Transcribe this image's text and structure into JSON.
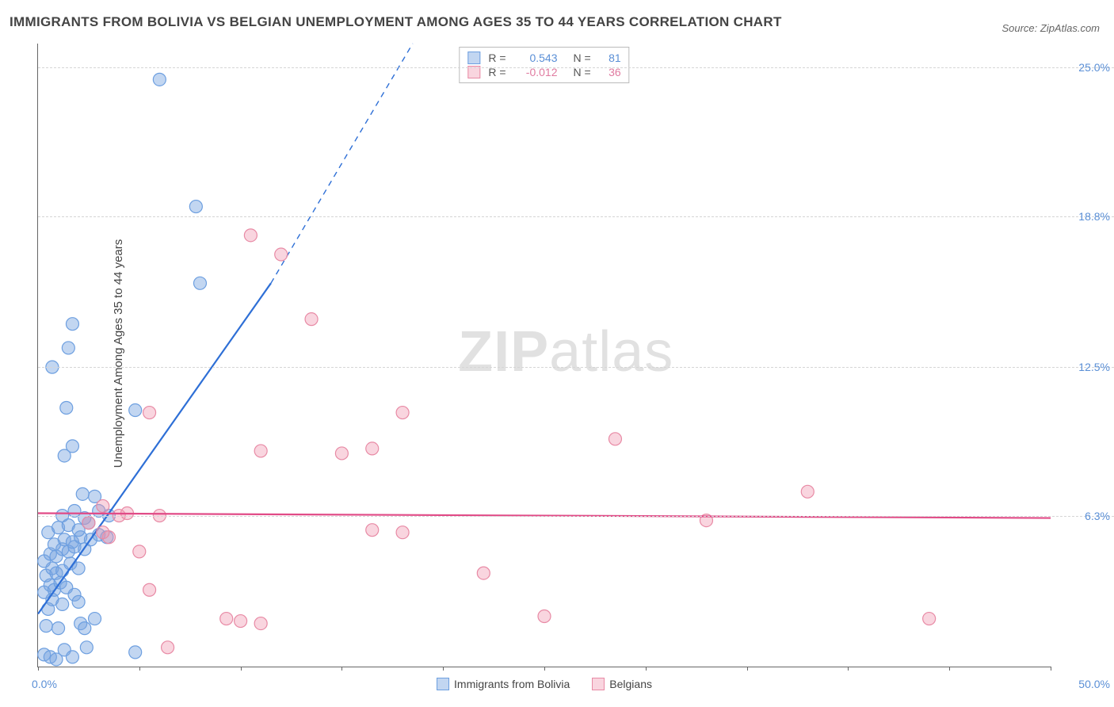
{
  "title": "IMMIGRANTS FROM BOLIVIA VS BELGIAN UNEMPLOYMENT AMONG AGES 35 TO 44 YEARS CORRELATION CHART",
  "source": "Source: ZipAtlas.com",
  "ylabel": "Unemployment Among Ages 35 to 44 years",
  "watermark_a": "ZIP",
  "watermark_b": "atlas",
  "chart": {
    "type": "scatter",
    "xlim": [
      0,
      50
    ],
    "ylim": [
      0,
      26
    ],
    "xlim_labels": {
      "min": "0.0%",
      "max": "50.0%"
    },
    "xtick_positions": [
      0,
      5,
      10,
      15,
      20,
      25,
      30,
      35,
      40,
      45,
      50
    ],
    "yticks": [
      {
        "v": 6.3,
        "label": "6.3%"
      },
      {
        "v": 12.5,
        "label": "12.5%"
      },
      {
        "v": 18.8,
        "label": "18.8%"
      },
      {
        "v": 25.0,
        "label": "25.0%"
      }
    ],
    "background_color": "#ffffff",
    "grid_color": "#d5d5d5",
    "axis_color": "#666666",
    "marker_radius": 8,
    "marker_stroke_width": 1.2,
    "line_width": 2.2,
    "series": [
      {
        "name": "Immigrants from Bolivia",
        "color_fill": "rgba(120,165,225,0.45)",
        "color_stroke": "#6d9fe0",
        "line_color": "#2e6fd6",
        "text_color": "#5a8fd6",
        "R": "0.543",
        "N": "81",
        "trend": {
          "x1": 0,
          "y1": 2.2,
          "x2": 11.5,
          "y2": 16.0,
          "dash_x2": 18.5,
          "dash_y2": 26.0
        },
        "points": [
          [
            0.3,
            0.5
          ],
          [
            0.6,
            0.4
          ],
          [
            0.9,
            0.3
          ],
          [
            1.3,
            0.7
          ],
          [
            1.7,
            0.4
          ],
          [
            2.4,
            0.8
          ],
          [
            4.8,
            0.6
          ],
          [
            0.4,
            1.7
          ],
          [
            1.0,
            1.6
          ],
          [
            2.1,
            1.8
          ],
          [
            2.3,
            1.6
          ],
          [
            2.8,
            2.0
          ],
          [
            0.5,
            2.4
          ],
          [
            0.7,
            2.8
          ],
          [
            1.2,
            2.6
          ],
          [
            1.8,
            3.0
          ],
          [
            2.0,
            2.7
          ],
          [
            0.3,
            3.1
          ],
          [
            0.6,
            3.4
          ],
          [
            0.8,
            3.2
          ],
          [
            1.1,
            3.5
          ],
          [
            1.4,
            3.3
          ],
          [
            0.4,
            3.8
          ],
          [
            0.7,
            4.1
          ],
          [
            0.9,
            3.9
          ],
          [
            1.2,
            4.0
          ],
          [
            1.6,
            4.3
          ],
          [
            2.0,
            4.1
          ],
          [
            0.3,
            4.4
          ],
          [
            0.6,
            4.7
          ],
          [
            0.9,
            4.6
          ],
          [
            1.2,
            4.9
          ],
          [
            1.5,
            4.8
          ],
          [
            1.8,
            5.0
          ],
          [
            2.3,
            4.9
          ],
          [
            0.8,
            5.1
          ],
          [
            1.3,
            5.3
          ],
          [
            1.7,
            5.2
          ],
          [
            2.1,
            5.4
          ],
          [
            2.6,
            5.3
          ],
          [
            3.0,
            5.5
          ],
          [
            3.4,
            5.4
          ],
          [
            0.5,
            5.6
          ],
          [
            1.0,
            5.8
          ],
          [
            1.5,
            5.9
          ],
          [
            2.0,
            5.7
          ],
          [
            2.5,
            6.0
          ],
          [
            1.2,
            6.3
          ],
          [
            1.8,
            6.5
          ],
          [
            2.3,
            6.2
          ],
          [
            3.0,
            6.5
          ],
          [
            3.5,
            6.3
          ],
          [
            2.2,
            7.2
          ],
          [
            2.8,
            7.1
          ],
          [
            1.3,
            8.8
          ],
          [
            1.7,
            9.2
          ],
          [
            4.8,
            10.7
          ],
          [
            1.4,
            10.8
          ],
          [
            0.7,
            12.5
          ],
          [
            1.5,
            13.3
          ],
          [
            1.7,
            14.3
          ],
          [
            8.0,
            16.0
          ],
          [
            7.8,
            19.2
          ],
          [
            6.0,
            24.5
          ]
        ]
      },
      {
        "name": "Belgians",
        "color_fill": "rgba(240,150,175,0.40)",
        "color_stroke": "#e88aa5",
        "line_color": "#e14b87",
        "text_color": "#e07ba0",
        "R": "-0.012",
        "N": "36",
        "trend": {
          "x1": 0,
          "y1": 6.4,
          "x2": 50,
          "y2": 6.2
        },
        "points": [
          [
            6.4,
            0.8
          ],
          [
            10.0,
            1.9
          ],
          [
            9.3,
            2.0
          ],
          [
            11.0,
            1.8
          ],
          [
            5.5,
            3.2
          ],
          [
            25.0,
            2.1
          ],
          [
            44.0,
            2.0
          ],
          [
            22.0,
            3.9
          ],
          [
            3.5,
            5.4
          ],
          [
            3.2,
            5.6
          ],
          [
            5.0,
            4.8
          ],
          [
            16.5,
            5.7
          ],
          [
            18.0,
            5.6
          ],
          [
            2.5,
            6.0
          ],
          [
            4.0,
            6.3
          ],
          [
            4.4,
            6.4
          ],
          [
            3.2,
            6.7
          ],
          [
            6.0,
            6.3
          ],
          [
            33.0,
            6.1
          ],
          [
            38.0,
            7.3
          ],
          [
            15.0,
            8.9
          ],
          [
            16.5,
            9.1
          ],
          [
            28.5,
            9.5
          ],
          [
            11.0,
            9.0
          ],
          [
            5.5,
            10.6
          ],
          [
            18.0,
            10.6
          ],
          [
            13.5,
            14.5
          ],
          [
            12.0,
            17.2
          ],
          [
            10.5,
            18.0
          ]
        ]
      }
    ]
  },
  "legend_top": {
    "R_label": "R  =",
    "N_label": "N  ="
  }
}
